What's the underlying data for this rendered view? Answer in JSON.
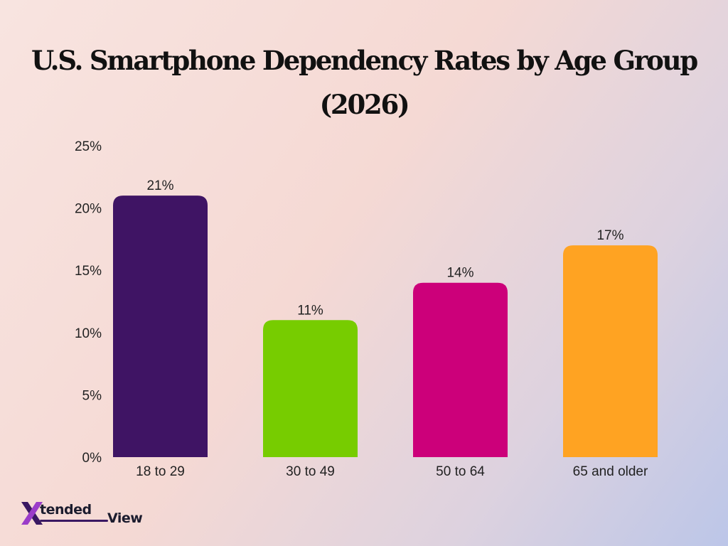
{
  "chart_data": {
    "type": "bar",
    "title": "U.S. Smartphone Dependency Rates by Age Group (2026)",
    "categories": [
      "18 to 29",
      "30 to 49",
      "50 to 64",
      "65 and older"
    ],
    "values": [
      21,
      11,
      14,
      17
    ],
    "data_labels": [
      "21%",
      "11%",
      "14%",
      "17%"
    ],
    "bar_colors": [
      "#3f1464",
      "#77cc00",
      "#cc007a",
      "#ffa322"
    ],
    "ylim": [
      0,
      25
    ],
    "yticks": [
      0,
      5,
      10,
      15,
      20,
      25
    ],
    "ytick_labels": [
      "0%",
      "5%",
      "10%",
      "15%",
      "20%",
      "25%"
    ],
    "xlabel": "",
    "ylabel": "",
    "grid": false,
    "legend": "none"
  },
  "logo": {
    "word1": "tended",
    "word2": "View",
    "colors": [
      "#3a1862",
      "#9b3cc9"
    ]
  }
}
